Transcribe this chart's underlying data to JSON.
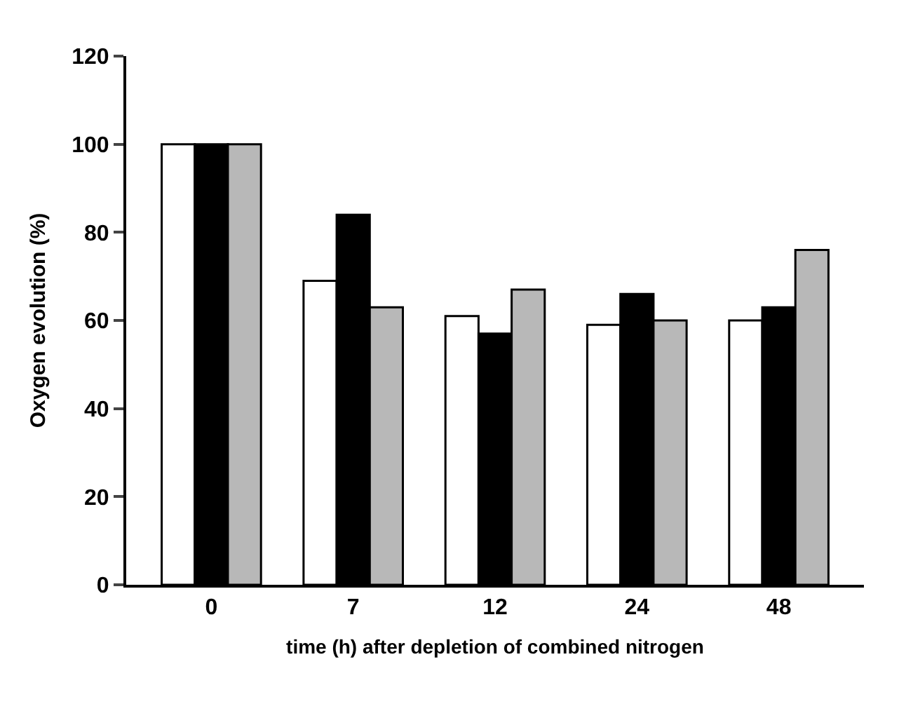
{
  "chart_data": {
    "type": "bar",
    "xlabel": "time (h) after depletion of combined nitrogen",
    "ylabel": "Oxygen evolution (%)",
    "categories": [
      "0",
      "7",
      "12",
      "24",
      "48"
    ],
    "series": [
      {
        "color": "#ffffff",
        "values": [
          100,
          69,
          61,
          59,
          60
        ]
      },
      {
        "color": "#000000",
        "values": [
          100,
          84,
          57,
          66,
          63
        ]
      },
      {
        "color": "#b8b8b8",
        "values": [
          100,
          63,
          67,
          60,
          76
        ]
      }
    ],
    "ylim": [
      0,
      120
    ],
    "yticks": [
      0,
      20,
      40,
      60,
      80,
      100,
      120
    ]
  }
}
